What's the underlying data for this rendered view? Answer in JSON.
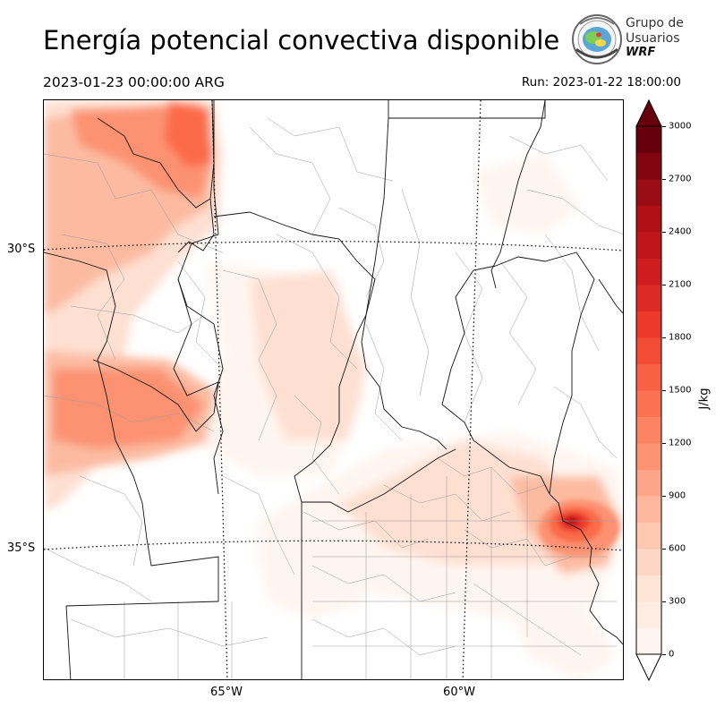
{
  "header": {
    "title": "Energía potencial convectiva disponible",
    "valid_time": "2023-01-23 00:00:00 ARG",
    "run_time": "Run: 2023-01-22 18:00:00"
  },
  "logo": {
    "line1": "Grupo de",
    "line2": "Usuarios",
    "line3": "WRF"
  },
  "axes": {
    "lat_labels": [
      "30°S",
      "35°S"
    ],
    "lon_labels": [
      "65°W",
      "60°W"
    ]
  },
  "colorbar": {
    "unit": "J/kg",
    "ticks": [
      "0",
      "300",
      "600",
      "900",
      "1200",
      "1500",
      "1800",
      "2100",
      "2400",
      "2700",
      "3000"
    ],
    "levels": [
      0,
      150,
      300,
      450,
      600,
      750,
      900,
      1050,
      1200,
      1350,
      1500,
      1650,
      1800,
      1950,
      2100,
      2250,
      2400,
      2550,
      2700,
      2850,
      3000
    ],
    "colors": [
      "#fff5f0",
      "#fee0d2",
      "#fcbba1",
      "#fc9272",
      "#fb6a4a",
      "#ef3b2c",
      "#cb181d",
      "#a50f15",
      "#67000d"
    ],
    "extend": "both"
  }
}
